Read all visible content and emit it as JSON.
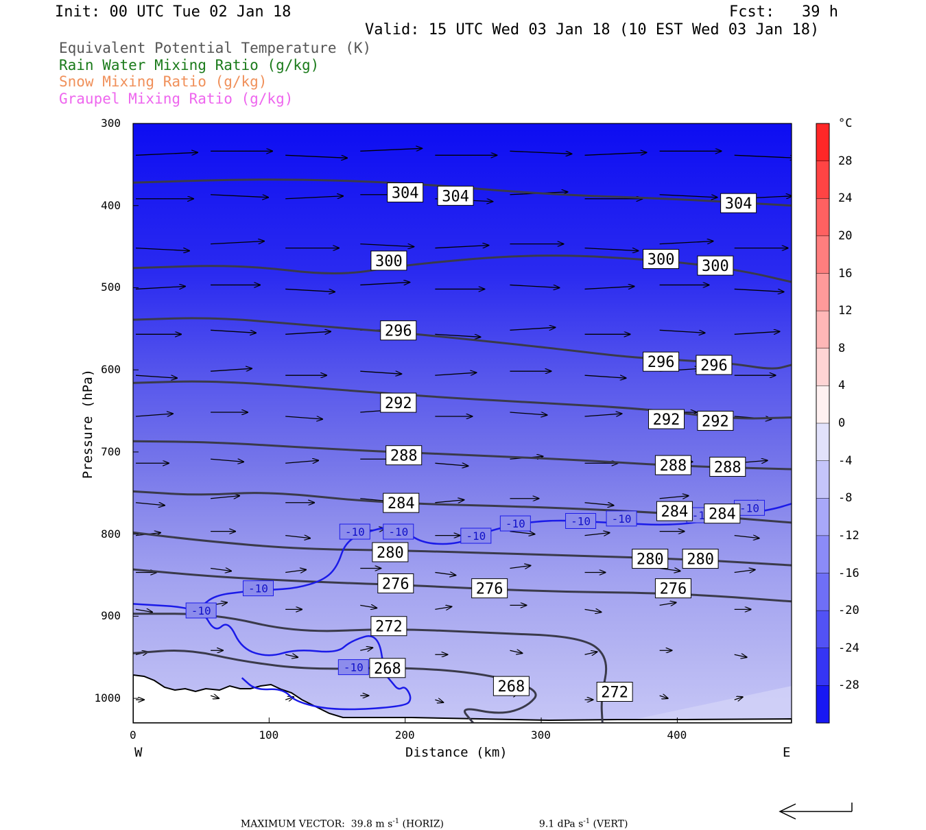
{
  "header": {
    "init": "Init: 00 UTC Tue 02 Jan 18",
    "fcst": "Fcst:   39 h",
    "valid": "Valid: 15 UTC Wed 03 Jan 18 (10 EST Wed 03 Jan 18)"
  },
  "fields": [
    {
      "label": "Equivalent Potential Temperature (K)",
      "color": "#555555"
    },
    {
      "label": "Rain Water Mixing Ratio (g/kg)",
      "color": "#1a7a1a"
    },
    {
      "label": "Snow Mixing Ratio (g/kg)",
      "color": "#f0905a"
    },
    {
      "label": "Graupel Mixing Ratio (g/kg)",
      "color": "#ee66ee"
    }
  ],
  "axes": {
    "ylabel": "Pressure (hPa)",
    "xlabel": "Distance (km)",
    "west": "W",
    "east": "E",
    "yticks": [
      "300",
      "400",
      "500",
      "600",
      "700",
      "800",
      "900",
      "1000"
    ],
    "xticks": [
      "0",
      "100",
      "200",
      "300",
      "400"
    ]
  },
  "colorbar": {
    "unit": "°C",
    "ticks": [
      "28",
      "24",
      "20",
      "16",
      "12",
      "8",
      "4",
      "0",
      "-4",
      "-8",
      "-12",
      "-16",
      "-20",
      "-24",
      "-28"
    ]
  },
  "footer": {
    "max_vector": "MAXIMUM VECTOR:  39.8 m s",
    "horiz_exp": "-1",
    "horiz_tail": " (HORIZ)",
    "vert": "9.1 dPa s",
    "vert_exp": "-1",
    "vert_tail": " (VERT)"
  },
  "chart_data": {
    "type": "cross-section contour",
    "xlabel": "Distance (km)",
    "ylabel": "Pressure (hPa)",
    "xlim": [
      0,
      484
    ],
    "ylim": [
      1030,
      300
    ],
    "theta_e_contours": [
      {
        "level": "304",
        "points": [
          [
            0,
            372
          ],
          [
            100,
            367
          ],
          [
            200,
            372
          ],
          [
            300,
            386
          ],
          [
            400,
            392
          ],
          [
            484,
            400
          ]
        ],
        "labels": [
          [
            200,
            384
          ],
          [
            237,
            388
          ],
          [
            445,
            397
          ]
        ]
      },
      {
        "level": "300",
        "points": [
          [
            0,
            476
          ],
          [
            80,
            472
          ],
          [
            150,
            486
          ],
          [
            200,
            472
          ],
          [
            300,
            458
          ],
          [
            400,
            468
          ],
          [
            450,
            480
          ],
          [
            484,
            493
          ]
        ],
        "labels": [
          [
            188,
            467
          ],
          [
            388,
            465
          ],
          [
            428,
            473
          ]
        ]
      },
      {
        "level": "296",
        "points": [
          [
            0,
            539
          ],
          [
            60,
            536
          ],
          [
            130,
            546
          ],
          [
            200,
            555
          ],
          [
            300,
            572
          ],
          [
            360,
            584
          ],
          [
            400,
            588
          ],
          [
            440,
            592
          ],
          [
            470,
            600
          ],
          [
            484,
            594
          ]
        ],
        "labels": [
          [
            195,
            552
          ],
          [
            388,
            590
          ],
          [
            427,
            594
          ]
        ]
      },
      {
        "level": "292",
        "points": [
          [
            0,
            616
          ],
          [
            60,
            613
          ],
          [
            150,
            624
          ],
          [
            230,
            634
          ],
          [
            300,
            640
          ],
          [
            380,
            648
          ],
          [
            440,
            660
          ],
          [
            484,
            658
          ]
        ],
        "labels": [
          [
            195,
            640
          ],
          [
            392,
            660
          ],
          [
            428,
            662
          ]
        ]
      },
      {
        "level": "288",
        "points": [
          [
            0,
            687
          ],
          [
            60,
            688
          ],
          [
            150,
            697
          ],
          [
            250,
            704
          ],
          [
            330,
            710
          ],
          [
            400,
            717
          ],
          [
            484,
            721
          ]
        ],
        "labels": [
          [
            199,
            704
          ],
          [
            397,
            716
          ],
          [
            437,
            718
          ]
        ]
      },
      {
        "level": "284",
        "points": [
          [
            0,
            748
          ],
          [
            50,
            753
          ],
          [
            100,
            748
          ],
          [
            180,
            762
          ],
          [
            300,
            767
          ],
          [
            400,
            775
          ],
          [
            484,
            786
          ]
        ],
        "labels": [
          [
            197,
            762
          ],
          [
            398,
            772
          ],
          [
            433,
            775
          ]
        ]
      },
      {
        "level": "280",
        "points": [
          [
            0,
            798
          ],
          [
            50,
            808
          ],
          [
            120,
            818
          ],
          [
            200,
            820
          ],
          [
            300,
            825
          ],
          [
            400,
            830
          ],
          [
            484,
            838
          ]
        ],
        "labels": [
          [
            189,
            822
          ],
          [
            380,
            830
          ],
          [
            417,
            830
          ]
        ]
      },
      {
        "level": "276",
        "points": [
          [
            0,
            843
          ],
          [
            60,
            852
          ],
          [
            130,
            858
          ],
          [
            200,
            862
          ],
          [
            300,
            870
          ],
          [
            400,
            872
          ],
          [
            484,
            882
          ]
        ],
        "labels": [
          [
            193,
            860
          ],
          [
            262,
            866
          ],
          [
            397,
            866
          ]
        ]
      },
      {
        "level": "272",
        "points": [
          [
            0,
            897
          ],
          [
            60,
            897
          ],
          [
            120,
            920
          ],
          [
            190,
            915
          ],
          [
            260,
            920
          ],
          [
            330,
            925
          ],
          [
            350,
            950
          ],
          [
            344,
            1000
          ],
          [
            345,
            1030
          ]
        ],
        "labels": [
          [
            188,
            912
          ],
          [
            354,
            992
          ]
        ]
      },
      {
        "level": "268",
        "points": [
          [
            0,
            945
          ],
          [
            40,
            940
          ],
          [
            80,
            955
          ],
          [
            130,
            965
          ],
          [
            200,
            962
          ],
          [
            260,
            970
          ],
          [
            300,
            990
          ],
          [
            290,
            1010
          ],
          [
            270,
            1020
          ],
          [
            240,
            1010
          ],
          [
            250,
            1030
          ]
        ],
        "labels": [
          [
            187,
            963
          ],
          [
            278,
            985
          ]
        ]
      }
    ],
    "temp_contours": [
      {
        "level": "-10",
        "points": [
          [
            0,
            885
          ],
          [
            50,
            890
          ],
          [
            60,
            920
          ],
          [
            70,
            905
          ],
          [
            80,
            940
          ],
          [
            100,
            950
          ],
          [
            120,
            940
          ],
          [
            150,
            945
          ],
          [
            160,
            930
          ],
          [
            180,
            920
          ],
          [
            185,
            970
          ],
          [
            190,
            980
          ],
          [
            195,
            990
          ],
          [
            200,
            985
          ],
          [
            205,
            1000
          ],
          [
            200,
            1010
          ],
          [
            150,
            1015
          ],
          [
            120,
            1005
          ],
          [
            110,
            988
          ],
          [
            90,
            990
          ],
          [
            80,
            975
          ]
        ],
        "labels": [
          [
            50,
            893
          ],
          [
            92,
            866
          ],
          [
            162,
            962
          ]
        ]
      },
      {
        "level": "-10",
        "points": [
          [
            50,
            888
          ],
          [
            60,
            875
          ],
          [
            80,
            870
          ],
          [
            100,
            868
          ],
          [
            120,
            866
          ],
          [
            140,
            856
          ],
          [
            150,
            840
          ],
          [
            156,
            810
          ],
          [
            170,
            798
          ],
          [
            190,
            790
          ],
          [
            200,
            798
          ],
          [
            215,
            812
          ],
          [
            240,
            812
          ],
          [
            260,
            796
          ],
          [
            300,
            782
          ],
          [
            350,
            786
          ],
          [
            400,
            790
          ],
          [
            440,
            778
          ],
          [
            470,
            770
          ],
          [
            484,
            763
          ]
        ],
        "labels": [
          [
            163,
            797
          ],
          [
            195,
            797
          ],
          [
            252,
            802
          ],
          [
            281,
            787
          ],
          [
            329,
            784
          ],
          [
            359,
            781
          ],
          [
            418,
            777
          ],
          [
            453,
            768
          ]
        ]
      }
    ],
    "colorbar": {
      "unit": "°C",
      "min": -32,
      "max": 32,
      "step": 4
    }
  }
}
